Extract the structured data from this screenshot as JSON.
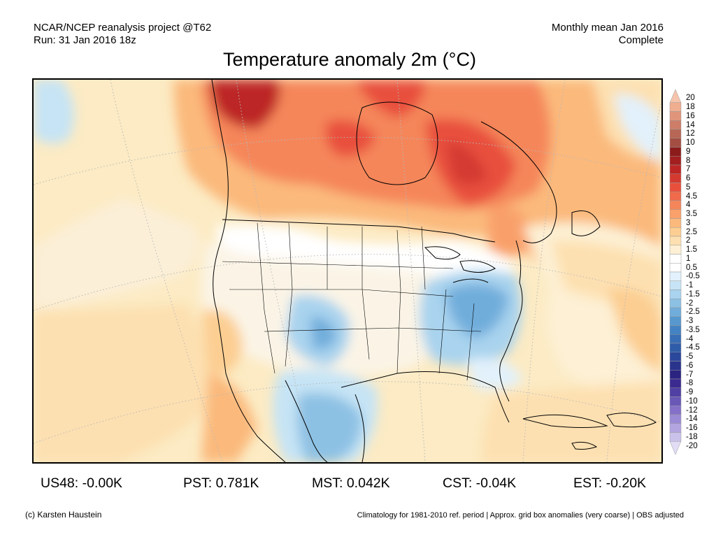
{
  "header": {
    "source": "NCAR/NCEP reanalysis project @T62",
    "run": "Run: 31 Jan 2016 18z",
    "period": "Monthly mean Jan 2016",
    "status": "Complete"
  },
  "title": "Temperature anomaly 2m (°C)",
  "colorbar": {
    "labels": [
      "20",
      "18",
      "16",
      "14",
      "12",
      "10",
      "9",
      "8",
      "7",
      "6",
      "5",
      "4.5",
      "4",
      "3.5",
      "3",
      "2.5",
      "2",
      "1.5",
      "1",
      "0.5",
      "-0.5",
      "-1",
      "-1.5",
      "-2",
      "-2.5",
      "-3",
      "-3.5",
      "-4",
      "-4.5",
      "-5",
      "-6",
      "-7",
      "-8",
      "-9",
      "-10",
      "-12",
      "-14",
      "-16",
      "-18",
      "-20"
    ],
    "colors": [
      "#f6c4ab",
      "#efae90",
      "#e0957b",
      "#cd7d68",
      "#b86655",
      "#a44e43",
      "#8c1b1b",
      "#a21e1f",
      "#bd2625",
      "#d43a30",
      "#e8503c",
      "#f06a4b",
      "#f5865a",
      "#f9a06b",
      "#fbb97c",
      "#fcce92",
      "#fde0b1",
      "#fdf0d4",
      "#ffffff",
      "#ffffff",
      "#e2f1fb",
      "#c6e4f5",
      "#a9d3ee",
      "#8dc1e4",
      "#71addb",
      "#5798cf",
      "#4483c3",
      "#386fb6",
      "#2f5ca9",
      "#2b479c",
      "#2a348d",
      "#2b2480",
      "#3b2a8f",
      "#5040a3",
      "#6a58b7",
      "#8470c8",
      "#9b8ad5",
      "#b3a5e0",
      "#cbc2eb",
      "#e2ddf5"
    ]
  },
  "stats": [
    {
      "label": "US48: -0.00K"
    },
    {
      "label": "PST: 0.781K"
    },
    {
      "label": "MST: 0.042K"
    },
    {
      "label": "CST: -0.04K"
    },
    {
      "label": "EST: -0.20K"
    }
  ],
  "footer": {
    "credit": "(c) Karsten Haustein",
    "note": "Climatology for 1981-2010 ref. period | Approx. grid box anomalies (very coarse) | OBS adjusted"
  }
}
